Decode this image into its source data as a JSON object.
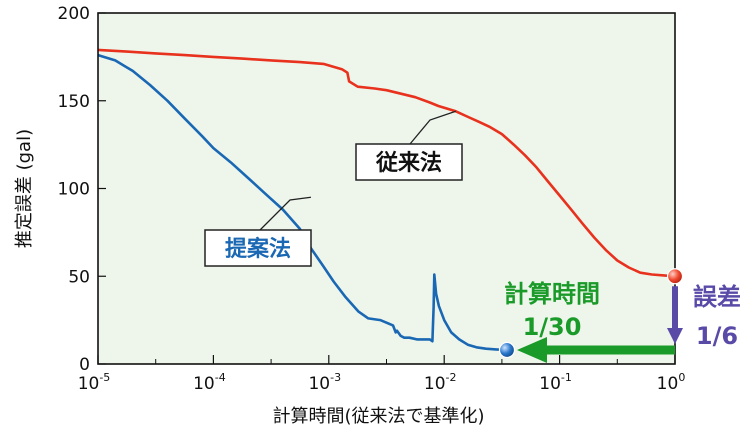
{
  "chart_data": {
    "type": "line",
    "xlabel": "計算時間(従来法で基準化)",
    "ylabel": "推定誤差 (gal)",
    "x_scale": "log",
    "xlim": [
      1e-05,
      1
    ],
    "ylim": [
      0,
      200
    ],
    "grid": false,
    "background": "#eef6ec",
    "x_ticks": [
      {
        "value": 1e-05,
        "base": "10",
        "exp": "-5"
      },
      {
        "value": 0.0001,
        "base": "10",
        "exp": "-4"
      },
      {
        "value": 0.001,
        "base": "10",
        "exp": "-3"
      },
      {
        "value": 0.01,
        "base": "10",
        "exp": "-2"
      },
      {
        "value": 0.1,
        "base": "10",
        "exp": "-1"
      },
      {
        "value": 1,
        "base": "10",
        "exp": "0"
      }
    ],
    "y_ticks": [
      "0",
      "50",
      "100",
      "150",
      "200"
    ],
    "series": [
      {
        "name": "従来法",
        "color": "#e8321e",
        "x": [
          1e-05,
          1.78e-05,
          3.16e-05,
          5.62e-05,
          0.0001,
          0.000178,
          0.000316,
          0.000562,
          0.0009,
          0.0013,
          0.00145,
          0.0015,
          0.00178,
          0.0025,
          0.00316,
          0.00562,
          0.0075,
          0.0089,
          0.01,
          0.0126,
          0.0158,
          0.02,
          0.025,
          0.0316,
          0.04,
          0.05,
          0.0631,
          0.0794,
          0.1,
          0.126,
          0.158,
          0.2,
          0.251,
          0.316,
          0.398,
          0.5,
          0.631,
          0.8,
          1
        ],
        "y": [
          179,
          178,
          177,
          176,
          175,
          174,
          173,
          172,
          171,
          168,
          166,
          161,
          158,
          157,
          156,
          152,
          149,
          147,
          146,
          144,
          141,
          138,
          135,
          131,
          125,
          119,
          112,
          104,
          96,
          88,
          80,
          72,
          65,
          59,
          55,
          52,
          51,
          50.5,
          50
        ]
      },
      {
        "name": "提案法",
        "color": "#1a68b4",
        "x": [
          1e-05,
          1.41e-05,
          2e-05,
          2.82e-05,
          4e-05,
          5.62e-05,
          7.94e-05,
          0.0001,
          0.000141,
          0.0002,
          0.000282,
          0.0004,
          0.000562,
          0.0007,
          0.00089,
          0.0011,
          0.0014,
          0.0018,
          0.0022,
          0.0028,
          0.0033,
          0.0036,
          0.0038,
          0.0039,
          0.0042,
          0.0045,
          0.005,
          0.0058,
          0.0066,
          0.0075,
          0.0079,
          0.0081,
          0.0082,
          0.0085,
          0.009,
          0.01,
          0.0115,
          0.0135,
          0.016,
          0.019,
          0.023,
          0.028,
          0.035
        ],
        "y": [
          176,
          173,
          167,
          159,
          150,
          140,
          130,
          123,
          115,
          106,
          97,
          88,
          77,
          66,
          56,
          47,
          38,
          30,
          26,
          25,
          23,
          22,
          18,
          19,
          16,
          15,
          15,
          14,
          14,
          14,
          13,
          32,
          51,
          40,
          33,
          25,
          18,
          14,
          11,
          9.5,
          8.7,
          8.3,
          8
        ]
      }
    ],
    "markers": [
      {
        "name": "従来法-end",
        "x": 1,
        "y": 50,
        "color": "#e8321e"
      },
      {
        "name": "提案法-end",
        "x": 0.035,
        "y": 8,
        "color": "#1f6fc0"
      }
    ],
    "annotations": [
      {
        "text": "従来法",
        "color": "#111111",
        "anchor_x": 0.0126,
        "anchor_y": 144
      },
      {
        "text": "提案法",
        "color": "#1a68b4",
        "anchor_x": 0.0007,
        "anchor_y": 95
      }
    ],
    "callouts": [
      {
        "lines": [
          "計算時間",
          "1/30"
        ],
        "color": "#1a9a28",
        "from_x": 1,
        "to_x": 0.035,
        "y": 8
      },
      {
        "lines": [
          "誤差",
          "1/6"
        ],
        "color": "#5a4aa8",
        "x": 1,
        "from_y": 50,
        "to_y": 8
      }
    ]
  }
}
